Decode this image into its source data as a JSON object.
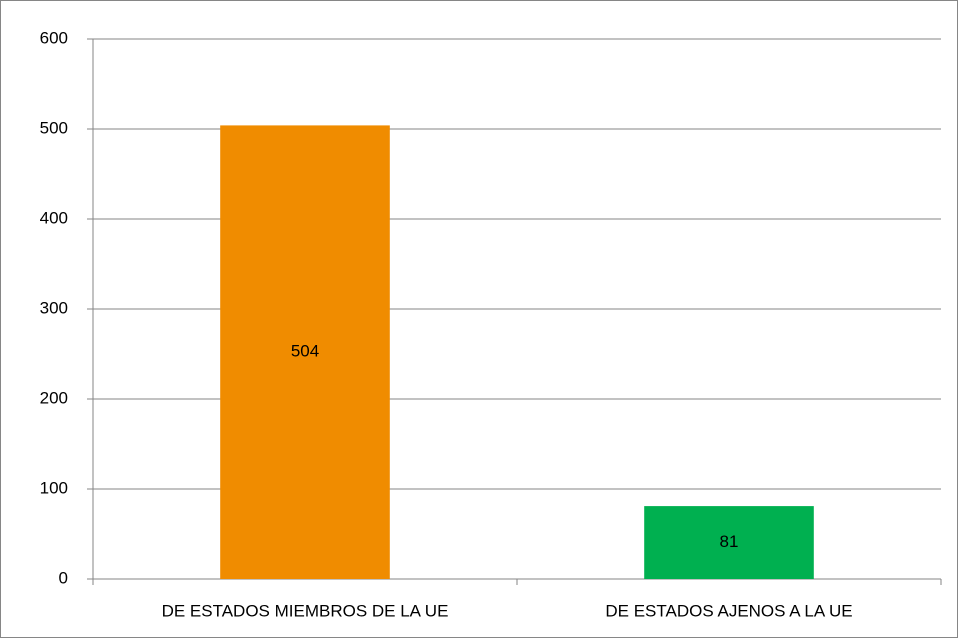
{
  "chart_data": {
    "type": "bar",
    "categories": [
      "DE ESTADOS MIEMBROS DE LA UE",
      "DE ESTADOS AJENOS A LA UE"
    ],
    "values": [
      504,
      81
    ],
    "colors": [
      "#f08c00",
      "#00b050"
    ],
    "ylim": [
      0,
      600
    ],
    "yticks": [
      0,
      100,
      200,
      300,
      400,
      500,
      600
    ],
    "grid": true,
    "data_labels": true
  }
}
